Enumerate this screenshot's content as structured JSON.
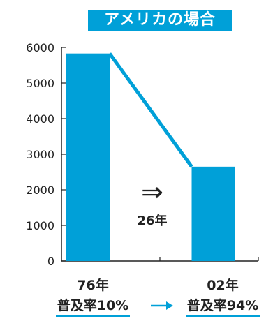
{
  "title": "アメリカの場合",
  "chart_data": {
    "type": "bar",
    "categories": [
      "76年",
      "02年"
    ],
    "adoption_rates": [
      "普及率10%",
      "普及率94%"
    ],
    "values": [
      5830,
      2650
    ],
    "ylim": [
      0,
      6000
    ],
    "yticks": [
      0,
      1000,
      2000,
      3000,
      4000,
      5000,
      6000
    ],
    "grid": false,
    "bar_color": "#00a0d8",
    "trend_line": true,
    "annotation_arrow": "⇒",
    "annotation_text": "26年",
    "xlabel": "",
    "ylabel": ""
  }
}
